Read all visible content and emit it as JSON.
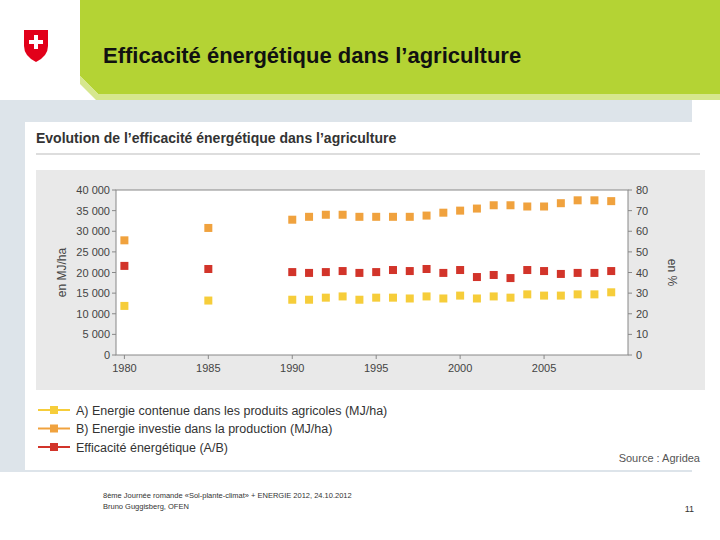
{
  "slide": {
    "title": "Efficacité énergétique dans l’agriculture",
    "footer": [
      "8ème Journée romande «Sol-plante-climat» + ENERGIE 2012, 24.10.2012",
      "Bruno Guggisberg, OFEN"
    ],
    "page_number": 11
  },
  "chart_data": {
    "type": "scatter",
    "title": "Evolution de l’efficacité énergétique dans l’agriculture",
    "y_label": "en MJ/ha",
    "y2_label": "en %",
    "source": "Source : Agridea",
    "x": [
      1980,
      1985,
      1990,
      1991,
      1992,
      1993,
      1994,
      1995,
      1996,
      1997,
      1998,
      1999,
      2000,
      2001,
      2002,
      2003,
      2004,
      2005,
      2006,
      2007,
      2008,
      2009
    ],
    "xlim": [
      1979.5,
      2010
    ],
    "xticks": [
      1980,
      1985,
      1990,
      1995,
      2000,
      2005
    ],
    "ylim": [
      0,
      40000
    ],
    "yticks": [
      0,
      {
        "value": 5000,
        "label": "5 000"
      },
      {
        "value": 10000,
        "label": "10 000"
      },
      {
        "value": 15000,
        "label": "15 000"
      },
      {
        "value": 20000,
        "label": "20 000"
      },
      {
        "value": 25000,
        "label": "25 000"
      },
      {
        "value": 30000,
        "label": "30 000"
      },
      {
        "value": 35000,
        "label": "35 000"
      },
      {
        "value": 40000,
        "label": "40 000"
      }
    ],
    "y2lim": [
      0,
      80
    ],
    "y2ticks": [
      0,
      10,
      20,
      30,
      40,
      50,
      60,
      70,
      80
    ],
    "grid": false,
    "legend": "bottom",
    "marker": "square",
    "series": [
      {
        "name": "A) Energie contenue dans les produits agricoles (MJ/ha)",
        "color": "#f6cd3a",
        "values": [
          11900,
          13200,
          13400,
          13400,
          13900,
          14200,
          13400,
          13900,
          13900,
          13700,
          14200,
          13700,
          14400,
          13700,
          14200,
          13900,
          14700,
          14400,
          14400,
          14700,
          14700,
          15200
        ]
      },
      {
        "name": "B) Energie investie dans la production (MJ/ha)",
        "color": "#f0a23e",
        "values": [
          27800,
          30800,
          32800,
          33500,
          34000,
          34000,
          33500,
          33500,
          33500,
          33500,
          33800,
          34500,
          35000,
          35500,
          36300,
          36300,
          36000,
          36000,
          36800,
          37500,
          37500,
          37300
        ]
      },
      {
        "name": "Efficacité énergétique (A/B)",
        "color": "#d2342a",
        "axis": "y2",
        "values": [
          43.2,
          41.7,
          40.2,
          39.8,
          40.2,
          40.7,
          39.8,
          40.2,
          41.2,
          40.7,
          41.7,
          39.8,
          41.2,
          37.8,
          38.8,
          37.3,
          41.2,
          40.7,
          39.3,
          39.8,
          39.8,
          40.7
        ]
      }
    ]
  }
}
